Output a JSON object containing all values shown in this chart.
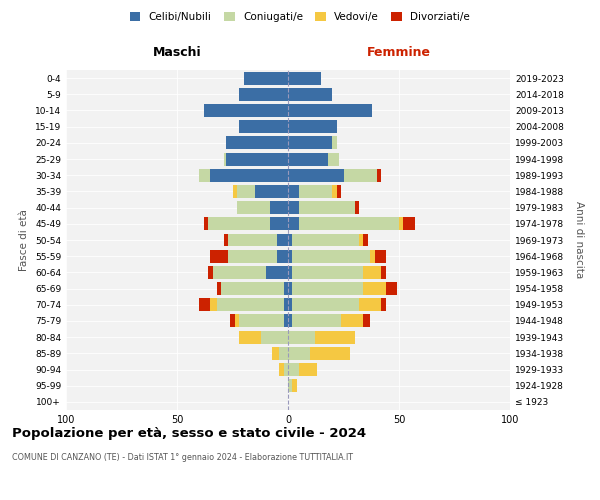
{
  "age_groups": [
    "100+",
    "95-99",
    "90-94",
    "85-89",
    "80-84",
    "75-79",
    "70-74",
    "65-69",
    "60-64",
    "55-59",
    "50-54",
    "45-49",
    "40-44",
    "35-39",
    "30-34",
    "25-29",
    "20-24",
    "15-19",
    "10-14",
    "5-9",
    "0-4"
  ],
  "birth_years": [
    "≤ 1923",
    "1924-1928",
    "1929-1933",
    "1934-1938",
    "1939-1943",
    "1944-1948",
    "1949-1953",
    "1954-1958",
    "1959-1963",
    "1964-1968",
    "1969-1973",
    "1974-1978",
    "1979-1983",
    "1984-1988",
    "1989-1993",
    "1994-1998",
    "1999-2003",
    "2004-2008",
    "2009-2013",
    "2014-2018",
    "2019-2023"
  ],
  "colors": {
    "celibe": "#3b6ea5",
    "coniugato": "#c5d8a4",
    "vedovo": "#f5c842",
    "divorziato": "#cc2200"
  },
  "maschi": {
    "celibe": [
      0,
      0,
      0,
      0,
      0,
      2,
      2,
      2,
      10,
      5,
      5,
      8,
      8,
      15,
      35,
      28,
      28,
      22,
      38,
      22,
      20
    ],
    "coniugato": [
      0,
      0,
      2,
      4,
      12,
      20,
      30,
      28,
      24,
      22,
      22,
      28,
      15,
      8,
      5,
      1,
      0,
      0,
      0,
      0,
      0
    ],
    "vedovo": [
      0,
      0,
      2,
      3,
      10,
      2,
      3,
      0,
      0,
      0,
      0,
      0,
      0,
      2,
      0,
      0,
      0,
      0,
      0,
      0,
      0
    ],
    "divorziato": [
      0,
      0,
      0,
      0,
      0,
      2,
      5,
      2,
      2,
      8,
      2,
      2,
      0,
      0,
      0,
      0,
      0,
      0,
      0,
      0,
      0
    ]
  },
  "femmine": {
    "celibe": [
      0,
      0,
      0,
      0,
      0,
      2,
      2,
      2,
      2,
      2,
      2,
      5,
      5,
      5,
      25,
      18,
      20,
      22,
      38,
      20,
      15
    ],
    "coniugato": [
      0,
      2,
      5,
      10,
      12,
      22,
      30,
      32,
      32,
      35,
      30,
      45,
      25,
      15,
      15,
      5,
      2,
      0,
      0,
      0,
      0
    ],
    "vedovo": [
      0,
      2,
      8,
      18,
      18,
      10,
      10,
      10,
      8,
      2,
      2,
      2,
      0,
      2,
      0,
      0,
      0,
      0,
      0,
      0,
      0
    ],
    "divorziato": [
      0,
      0,
      0,
      0,
      0,
      3,
      2,
      5,
      2,
      5,
      2,
      5,
      2,
      2,
      2,
      0,
      0,
      0,
      0,
      0,
      0
    ]
  },
  "title": "Popolazione per età, sesso e stato civile - 2024",
  "subtitle": "COMUNE DI CANZANO (TE) - Dati ISTAT 1° gennaio 2024 - Elaborazione TUTTITALIA.IT",
  "label_maschi": "Maschi",
  "label_femmine": "Femmine",
  "ylabel_left": "Fasce di età",
  "ylabel_right": "Anni di nascita",
  "xlim": 100,
  "legend_labels": [
    "Celibi/Nubili",
    "Coniugati/e",
    "Vedovi/e",
    "Divorziati/e"
  ],
  "bg_color": "#f2f2f2"
}
